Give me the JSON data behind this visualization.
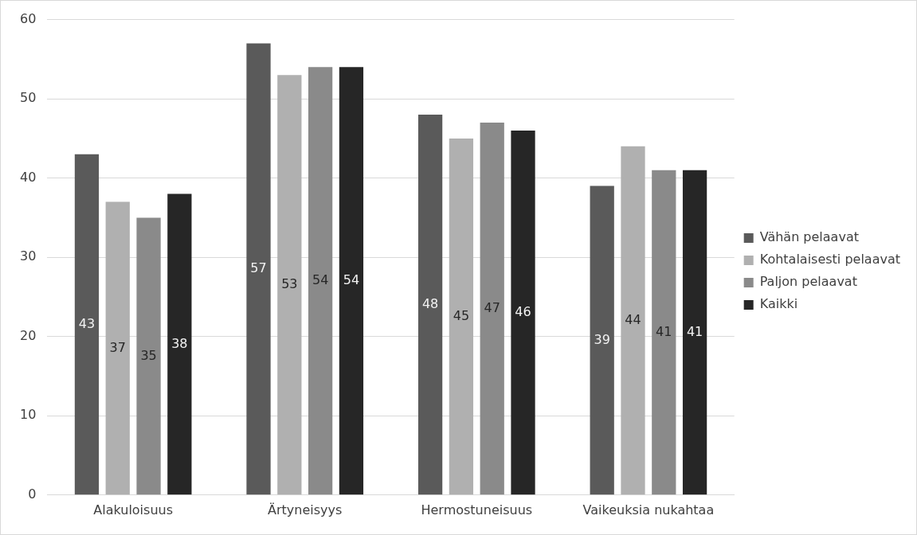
{
  "chart_data": {
    "type": "bar",
    "categories": [
      "Alakuloisuus",
      "Ärtyneisyys",
      "Hermostuneisuus",
      "Vaikeuksia nukahtaa"
    ],
    "series": [
      {
        "name": "Vähän pelaavat",
        "color": "#5a5a5a",
        "values": [
          43,
          57,
          48,
          39
        ]
      },
      {
        "name": "Kohtalaisesti pelaavat",
        "color": "#b0b0b0",
        "values": [
          37,
          53,
          45,
          44
        ]
      },
      {
        "name": "Paljon pelaavat",
        "color": "#8a8a8a",
        "values": [
          35,
          54,
          47,
          41
        ]
      },
      {
        "name": "Kaikki",
        "color": "#262626",
        "values": [
          38,
          54,
          46,
          41
        ]
      }
    ],
    "ylim": [
      0,
      60
    ],
    "yticks": [
      0,
      10,
      20,
      30,
      40,
      50,
      60
    ],
    "grid": "y",
    "legend": "right",
    "data_labels": true
  }
}
